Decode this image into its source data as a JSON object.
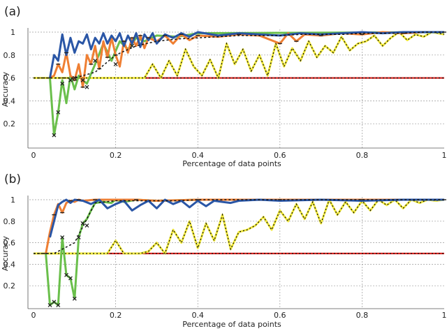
{
  "chart_data": [
    {
      "type": "line",
      "panel_label": "(a)",
      "xlabel": "Percentage of data points",
      "ylabel": "Accuracy",
      "xlim": [
        0,
        1
      ],
      "ylim": [
        0,
        1
      ],
      "xticks": [
        0,
        0.2,
        0.4,
        0.6,
        0.8,
        1
      ],
      "xtick_labels": [
        "0",
        "0.2",
        "0.4",
        "0.6",
        "0.8",
        "1"
      ],
      "yticks": [
        0.2,
        0.4,
        0.6,
        0.8,
        1
      ],
      "ytick_labels": [
        "0.2",
        "0.4",
        "0.6",
        "0.8",
        "1"
      ],
      "grid": true,
      "colors": {
        "red": "#d9231f",
        "yellow": "#f2ea3c",
        "green": "#6abf4b",
        "orange": "#ef7f33",
        "blue": "#2a56a6",
        "dashed": "#111111",
        "marker": "#222222"
      },
      "series": [
        {
          "color": "red",
          "x": [
            0.0,
            1.0
          ],
          "y": [
            0.6,
            0.6
          ]
        },
        {
          "color": "yellow",
          "x": [
            0.0,
            0.27,
            0.29,
            0.31,
            0.33,
            0.35,
            0.37,
            0.39,
            0.41,
            0.43,
            0.45,
            0.47,
            0.49,
            0.51,
            0.53,
            0.55,
            0.57,
            0.59,
            0.61,
            0.63,
            0.65,
            0.67,
            0.69,
            0.71,
            0.73,
            0.75,
            0.77,
            0.79,
            0.81,
            0.83,
            0.85,
            0.87,
            0.89,
            0.91,
            0.93,
            0.95,
            0.97,
            1.0
          ],
          "y": [
            0.6,
            0.6,
            0.72,
            0.6,
            0.75,
            0.62,
            0.85,
            0.7,
            0.62,
            0.76,
            0.6,
            0.9,
            0.72,
            0.85,
            0.66,
            0.8,
            0.62,
            0.9,
            0.7,
            0.86,
            0.75,
            0.92,
            0.78,
            0.88,
            0.82,
            0.96,
            0.84,
            0.9,
            0.92,
            0.97,
            0.88,
            0.95,
            1.0,
            0.93,
            0.98,
            0.96,
            1.0,
            0.98
          ]
        },
        {
          "color": "green",
          "x": [
            0.04,
            0.05,
            0.06,
            0.07,
            0.08,
            0.09,
            0.1,
            0.11,
            0.12,
            0.13,
            0.15,
            0.17,
            0.19,
            0.21,
            0.23,
            0.25,
            0.27,
            0.3,
            0.35,
            0.4,
            1.0
          ],
          "y": [
            0.6,
            0.1,
            0.3,
            0.58,
            0.38,
            0.62,
            0.5,
            0.62,
            0.58,
            0.55,
            0.72,
            0.9,
            0.75,
            0.92,
            0.85,
            0.95,
            0.92,
            0.97,
            0.96,
            0.99,
            1.0
          ]
        },
        {
          "color": "orange",
          "x": [
            0.04,
            0.05,
            0.06,
            0.07,
            0.08,
            0.09,
            0.1,
            0.11,
            0.12,
            0.13,
            0.14,
            0.15,
            0.16,
            0.17,
            0.18,
            0.19,
            0.2,
            0.21,
            0.22,
            0.23,
            0.24,
            0.25,
            0.26,
            0.27,
            0.28,
            0.3,
            0.32,
            0.34,
            0.36,
            0.38,
            0.4,
            0.45,
            0.5,
            0.55,
            0.6,
            0.62,
            0.64,
            0.66,
            0.7,
            0.75,
            0.8,
            0.85,
            0.9,
            0.95,
            1.0
          ],
          "y": [
            0.6,
            0.62,
            0.72,
            0.65,
            0.82,
            0.62,
            0.58,
            0.72,
            0.52,
            0.8,
            0.72,
            0.88,
            0.68,
            0.92,
            0.78,
            0.95,
            0.8,
            0.7,
            0.92,
            0.82,
            0.95,
            0.88,
            0.97,
            0.86,
            0.95,
            0.92,
            0.97,
            0.9,
            0.98,
            0.93,
            0.97,
            0.96,
            0.98,
            0.97,
            0.9,
            0.99,
            0.92,
            0.98,
            0.97,
            0.99,
            0.98,
            1.0,
            0.99,
            1.0,
            1.0
          ]
        },
        {
          "color": "blue",
          "x": [
            0.04,
            0.05,
            0.06,
            0.07,
            0.08,
            0.09,
            0.1,
            0.11,
            0.12,
            0.13,
            0.14,
            0.15,
            0.16,
            0.17,
            0.18,
            0.19,
            0.2,
            0.21,
            0.22,
            0.23,
            0.24,
            0.25,
            0.26,
            0.27,
            0.28,
            0.29,
            0.3,
            0.32,
            0.34,
            0.36,
            0.38,
            0.4,
            0.45,
            0.5,
            0.55,
            0.6,
            0.65,
            0.7,
            0.75,
            0.8,
            0.85,
            0.9,
            0.95,
            1.0
          ],
          "y": [
            0.6,
            0.8,
            0.75,
            0.98,
            0.8,
            0.95,
            0.82,
            0.92,
            0.9,
            0.98,
            0.85,
            0.95,
            0.9,
            0.99,
            0.9,
            0.97,
            0.92,
            0.99,
            0.88,
            0.97,
            0.9,
            0.99,
            0.87,
            0.98,
            0.93,
            0.99,
            0.9,
            0.98,
            0.95,
            0.99,
            0.96,
            1.0,
            0.97,
            0.99,
            0.98,
            0.97,
            0.99,
            0.98,
            0.99,
            1.0,
            0.99,
            1.0,
            1.0,
            1.0
          ]
        }
      ],
      "dashed_series": {
        "x": [
          0.0,
          0.05,
          0.1,
          0.15,
          0.2,
          0.25,
          0.3,
          0.35,
          0.4,
          0.45,
          0.5,
          0.55,
          0.6,
          0.65,
          0.7,
          0.75,
          0.8,
          0.85,
          0.9,
          0.95,
          1.0
        ],
        "y": [
          0.6,
          0.6,
          0.6,
          0.65,
          0.8,
          0.88,
          0.92,
          0.94,
          0.95,
          0.96,
          0.97,
          0.97,
          0.97,
          0.98,
          0.98,
          0.98,
          0.99,
          0.99,
          0.99,
          1.0,
          1.0
        ]
      },
      "x_markers": {
        "x": [
          0.05,
          0.06,
          0.07,
          0.09,
          0.1,
          0.12,
          0.13,
          0.15,
          0.2,
          0.24
        ],
        "y": [
          0.1,
          0.3,
          0.55,
          0.58,
          0.6,
          0.58,
          0.52,
          0.75,
          0.72,
          0.88
        ]
      }
    },
    {
      "type": "line",
      "panel_label": "(b)",
      "xlabel": "Percentage of data points",
      "ylabel": "Accuracy",
      "xlim": [
        0,
        1
      ],
      "ylim": [
        0,
        1
      ],
      "xticks": [
        0,
        0.2,
        0.4,
        0.6,
        0.8,
        1
      ],
      "xtick_labels": [
        "0",
        "0.2",
        "0.4",
        "0.6",
        "0.8",
        "1"
      ],
      "yticks": [
        0.2,
        0.4,
        0.6,
        0.8,
        1
      ],
      "ytick_labels": [
        "0.2",
        "0.4",
        "0.6",
        "0.8",
        "1"
      ],
      "grid": true,
      "colors": {
        "red": "#d9231f",
        "yellow": "#f2ea3c",
        "green": "#6abf4b",
        "orange": "#ef7f33",
        "blue": "#2a56a6",
        "dashed": "#111111",
        "marker": "#222222"
      },
      "series": [
        {
          "color": "red",
          "x": [
            0.0,
            1.0
          ],
          "y": [
            0.5,
            0.5
          ]
        },
        {
          "color": "yellow",
          "x": [
            0.0,
            0.18,
            0.2,
            0.22,
            0.26,
            0.28,
            0.3,
            0.32,
            0.34,
            0.36,
            0.38,
            0.4,
            0.42,
            0.44,
            0.46,
            0.48,
            0.5,
            0.52,
            0.54,
            0.56,
            0.58,
            0.6,
            0.62,
            0.64,
            0.66,
            0.68,
            0.7,
            0.72,
            0.74,
            0.76,
            0.78,
            0.8,
            0.82,
            0.84,
            0.86,
            0.88,
            0.9,
            0.92,
            0.94,
            0.96,
            0.98,
            1.0
          ],
          "y": [
            0.5,
            0.5,
            0.62,
            0.5,
            0.5,
            0.52,
            0.6,
            0.5,
            0.72,
            0.6,
            0.8,
            0.55,
            0.78,
            0.62,
            0.86,
            0.54,
            0.7,
            0.72,
            0.76,
            0.84,
            0.72,
            0.9,
            0.8,
            0.96,
            0.82,
            0.98,
            0.78,
            1.0,
            0.86,
            0.98,
            0.88,
            0.99,
            0.9,
            1.0,
            0.95,
            1.0,
            0.92,
            1.0,
            0.97,
            1.0,
            0.99,
            1.0
          ]
        },
        {
          "color": "green",
          "x": [
            0.03,
            0.04,
            0.05,
            0.06,
            0.07,
            0.08,
            0.09,
            0.1,
            0.11,
            0.12,
            0.13,
            0.14,
            0.15,
            0.17,
            0.19,
            0.2,
            0.22,
            0.25,
            0.3,
            0.4,
            1.0
          ],
          "y": [
            0.5,
            0.02,
            0.05,
            0.02,
            0.65,
            0.3,
            0.27,
            0.08,
            0.65,
            0.78,
            0.82,
            0.9,
            0.97,
            0.98,
            0.97,
            1.0,
            0.98,
            1.0,
            0.99,
            1.0,
            1.0
          ]
        },
        {
          "color": "orange",
          "x": [
            0.03,
            0.04,
            0.05,
            0.06,
            0.07,
            0.08,
            0.09,
            0.1,
            0.11,
            0.12,
            0.15,
            0.2,
            0.25,
            0.3,
            0.4,
            0.5,
            0.6,
            0.7,
            0.8,
            0.9,
            1.0
          ],
          "y": [
            0.5,
            0.7,
            0.86,
            0.96,
            0.88,
            0.97,
            0.99,
            0.98,
            1.0,
            0.99,
            1.0,
            1.0,
            1.0,
            0.99,
            1.0,
            1.0,
            1.0,
            1.0,
            1.0,
            1.0,
            1.0
          ]
        },
        {
          "color": "blue",
          "x": [
            0.04,
            0.05,
            0.06,
            0.07,
            0.08,
            0.09,
            0.1,
            0.12,
            0.14,
            0.16,
            0.18,
            0.2,
            0.22,
            0.24,
            0.26,
            0.28,
            0.3,
            0.32,
            0.34,
            0.36,
            0.38,
            0.4,
            0.42,
            0.44,
            0.46,
            0.48,
            0.5,
            0.55,
            0.6,
            0.7,
            0.8,
            0.9,
            1.0
          ],
          "y": [
            0.65,
            0.8,
            0.95,
            0.98,
            1.0,
            0.97,
            1.0,
            0.99,
            0.96,
            1.0,
            0.92,
            0.96,
            0.99,
            0.9,
            0.95,
            0.99,
            0.92,
            1.0,
            0.96,
            0.99,
            0.93,
            0.99,
            0.94,
            0.99,
            0.98,
            0.97,
            0.99,
            1.0,
            0.99,
            1.0,
            0.99,
            1.0,
            1.0
          ]
        }
      ],
      "dashed_series": {
        "x": [
          0.0,
          0.05,
          0.1,
          0.15,
          0.2,
          0.25,
          0.3,
          0.35,
          0.4,
          0.45,
          0.5,
          0.55,
          0.6,
          0.65,
          0.7,
          0.75,
          0.8,
          0.85,
          0.9,
          0.95,
          1.0
        ],
        "y": [
          0.5,
          0.5,
          0.6,
          0.97,
          0.99,
          0.99,
          0.99,
          0.99,
          1.0,
          1.0,
          1.0,
          1.0,
          1.0,
          1.0,
          1.0,
          1.0,
          1.0,
          1.0,
          1.0,
          1.0,
          1.0
        ]
      },
      "x_markers": {
        "x": [
          0.04,
          0.05,
          0.06,
          0.07,
          0.08,
          0.09,
          0.1,
          0.11,
          0.12,
          0.13
        ],
        "y": [
          0.02,
          0.05,
          0.02,
          0.65,
          0.3,
          0.27,
          0.08,
          0.65,
          0.78,
          0.76
        ]
      }
    }
  ]
}
